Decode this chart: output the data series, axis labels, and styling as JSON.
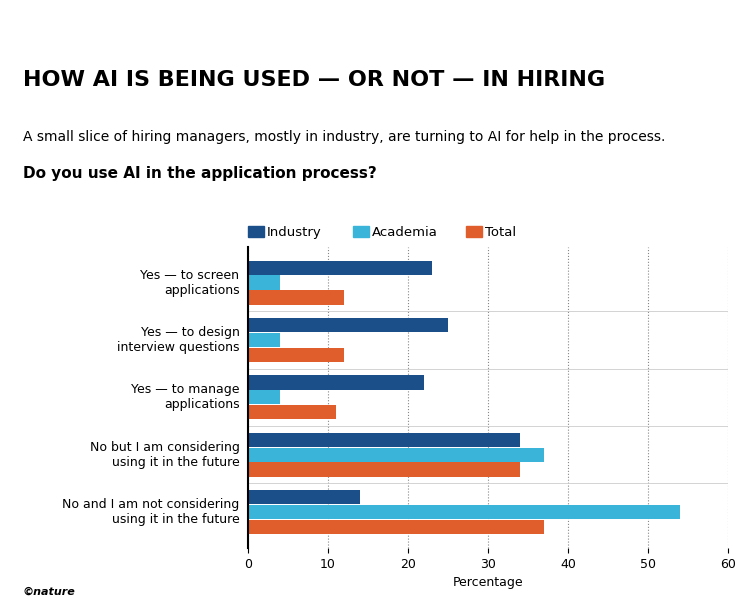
{
  "title": "HOW AI IS BEING USED — OR NOT — IN HIRING",
  "subtitle": "A small slice of hiring managers, mostly in industry, are turning to AI for help in the process.",
  "question": "Do you use AI in the application process?",
  "categories": [
    "Yes — to screen\napplications",
    "Yes — to design\ninterview questions",
    "Yes — to manage\napplications",
    "No but I am considering\nusing it in the future",
    "No and I am not considering\nusing it in the future"
  ],
  "series": {
    "Industry": [
      23,
      25,
      22,
      34,
      14
    ],
    "Academia": [
      4,
      4,
      4,
      37,
      54
    ],
    "Total": [
      12,
      12,
      11,
      34,
      37
    ]
  },
  "colors": {
    "Industry": "#1a4f8a",
    "Academia": "#3ab4d8",
    "Total": "#e05e2b"
  },
  "legend_labels": [
    "Industry",
    "Academia",
    "Total"
  ],
  "xlabel": "Percentage",
  "xlim": [
    0,
    60
  ],
  "xticks": [
    0,
    10,
    20,
    30,
    40,
    50,
    60
  ],
  "bar_height": 0.25,
  "background_color": "#ffffff",
  "title_fontsize": 16,
  "subtitle_fontsize": 10,
  "question_fontsize": 11,
  "tick_fontsize": 9,
  "axis_fontsize": 9,
  "nature_label": "©nature"
}
